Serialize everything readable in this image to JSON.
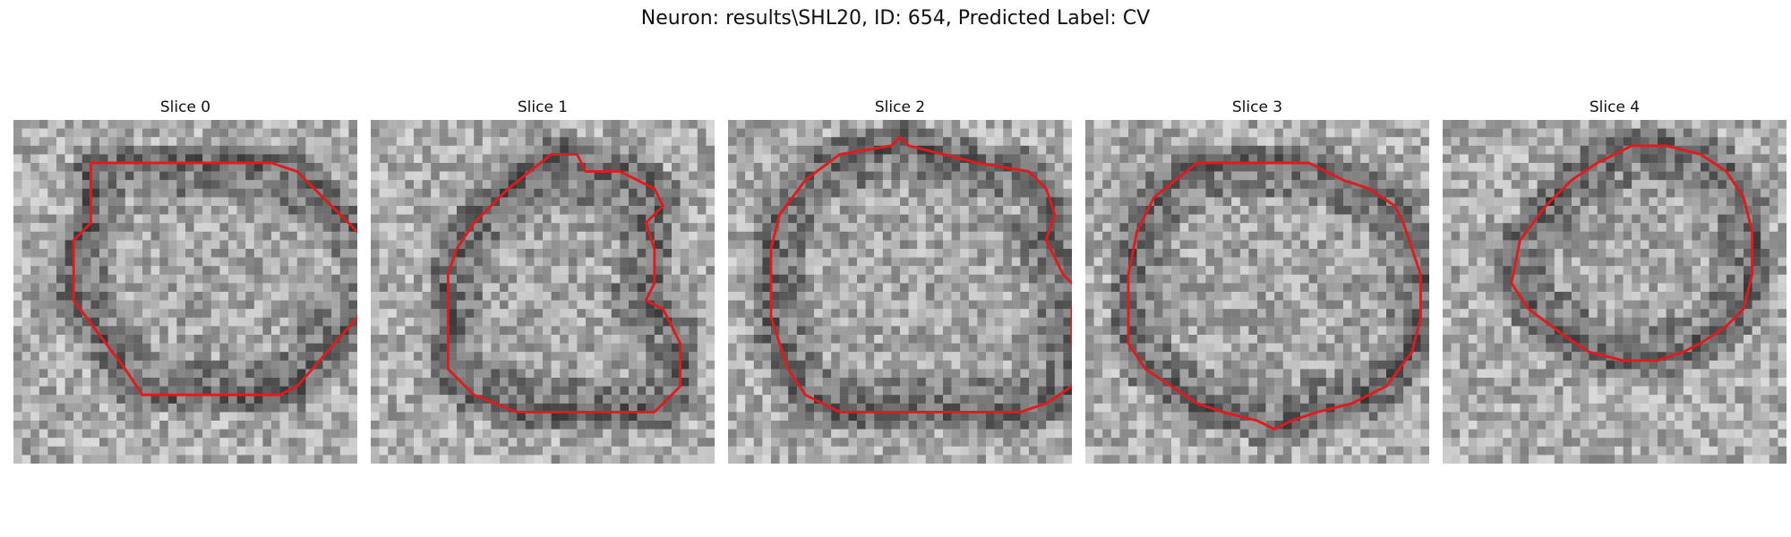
{
  "figure": {
    "title": "Neuron: results\\SHL20, ID: 654, Predicted Label: CV"
  },
  "style": {
    "contour_color": "#e31a1c",
    "colormap": "grayscale"
  },
  "panels": [
    {
      "title": "Slice 0",
      "seed": 11,
      "contour": [
        [
          17,
          5
        ],
        [
          30,
          5
        ],
        [
          33,
          6
        ],
        [
          35,
          8
        ],
        [
          40,
          13
        ],
        [
          42,
          17
        ],
        [
          40,
          23
        ],
        [
          33,
          31
        ],
        [
          31,
          32
        ],
        [
          28,
          32
        ],
        [
          15,
          32
        ],
        [
          13,
          29
        ],
        [
          10,
          25
        ],
        [
          7,
          21
        ],
        [
          7,
          14
        ],
        [
          9,
          12
        ],
        [
          9,
          5
        ]
      ]
    },
    {
      "title": "Slice 1",
      "seed": 23,
      "contour": [
        [
          21,
          4
        ],
        [
          24,
          4
        ],
        [
          25,
          6
        ],
        [
          29,
          6
        ],
        [
          33,
          8
        ],
        [
          34,
          10
        ],
        [
          32,
          12
        ],
        [
          33,
          15
        ],
        [
          33,
          19
        ],
        [
          32,
          21
        ],
        [
          34,
          22
        ],
        [
          35,
          24
        ],
        [
          36,
          26
        ],
        [
          36,
          31
        ],
        [
          33,
          34
        ],
        [
          22,
          34
        ],
        [
          17,
          34
        ],
        [
          12,
          32
        ],
        [
          9,
          29
        ],
        [
          9,
          25
        ],
        [
          9,
          18
        ],
        [
          10,
          15
        ],
        [
          12,
          12
        ],
        [
          16,
          8
        ]
      ]
    },
    {
      "title": "Slice 2",
      "seed": 37,
      "contour": [
        [
          20,
          2
        ],
        [
          21,
          3
        ],
        [
          25,
          4
        ],
        [
          29,
          5
        ],
        [
          35,
          6
        ],
        [
          37,
          8
        ],
        [
          38,
          11
        ],
        [
          37,
          14
        ],
        [
          38,
          16
        ],
        [
          39,
          18
        ],
        [
          41,
          20
        ],
        [
          40,
          22
        ],
        [
          40,
          26
        ],
        [
          41,
          29
        ],
        [
          40,
          31
        ],
        [
          37,
          33
        ],
        [
          34,
          34
        ],
        [
          25,
          34
        ],
        [
          13,
          34
        ],
        [
          9,
          32
        ],
        [
          7,
          29
        ],
        [
          5,
          23
        ],
        [
          5,
          15
        ],
        [
          6,
          11
        ],
        [
          9,
          7
        ],
        [
          13,
          4
        ],
        [
          19,
          3
        ]
      ]
    },
    {
      "title": "Slice 3",
      "seed": 41,
      "contour": [
        [
          13,
          5
        ],
        [
          26,
          5
        ],
        [
          30,
          7
        ],
        [
          33,
          8
        ],
        [
          36,
          10
        ],
        [
          37,
          12
        ],
        [
          38,
          15
        ],
        [
          39,
          18
        ],
        [
          39,
          23
        ],
        [
          38,
          27
        ],
        [
          35,
          31
        ],
        [
          31,
          33
        ],
        [
          27,
          34
        ],
        [
          24,
          35
        ],
        [
          22,
          36
        ],
        [
          20,
          35
        ],
        [
          16,
          34
        ],
        [
          13,
          33
        ],
        [
          10,
          31
        ],
        [
          7,
          29
        ],
        [
          5,
          26
        ],
        [
          5,
          18
        ],
        [
          6,
          13
        ],
        [
          8,
          9
        ]
      ]
    },
    {
      "title": "Slice 4",
      "seed": 53,
      "contour": [
        [
          22,
          3
        ],
        [
          26,
          3
        ],
        [
          30,
          4
        ],
        [
          33,
          6
        ],
        [
          35,
          9
        ],
        [
          36,
          13
        ],
        [
          36,
          18
        ],
        [
          35,
          22
        ],
        [
          33,
          24
        ],
        [
          30,
          26
        ],
        [
          28,
          27
        ],
        [
          25,
          28
        ],
        [
          21,
          28
        ],
        [
          17,
          27
        ],
        [
          14,
          25
        ],
        [
          10,
          22
        ],
        [
          8,
          19
        ],
        [
          9,
          14
        ],
        [
          12,
          10
        ],
        [
          15,
          7
        ],
        [
          18,
          5
        ]
      ]
    }
  ]
}
